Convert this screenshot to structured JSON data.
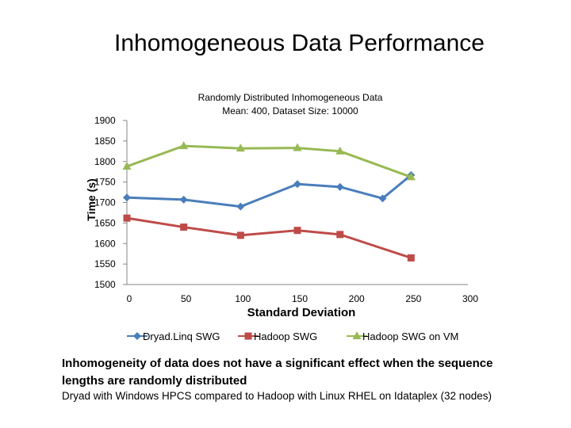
{
  "slide": {
    "title": "Inhomogeneous Data Performance",
    "note_primary": "Inhomogeneity of data does not have a significant effect when the sequence lengths are randomly distributed",
    "note_secondary": "Dryad with Windows HPCS compared to Hadoop with Linux RHEL on Idataplex (32 nodes)"
  },
  "chart_data": {
    "type": "line",
    "title": "Randomly Distributed Inhomogeneous Data",
    "subtitle": "Mean: 400,  Dataset Size: 10000",
    "xlabel": "Standard Deviation",
    "ylabel": "Time (s)",
    "xlim": [
      0,
      300
    ],
    "ylim": [
      1500,
      1900
    ],
    "xticks": [
      0,
      50,
      100,
      150,
      200,
      250,
      300
    ],
    "yticks": [
      1500,
      1550,
      1600,
      1650,
      1700,
      1750,
      1800,
      1850,
      1900
    ],
    "gridlines": false,
    "legend_position": "bottom",
    "series": [
      {
        "name": "Dryad.Linq SWG",
        "color": "#4a7ebb",
        "marker": "diamond",
        "x": [
          0,
          50,
          100,
          150,
          187.5,
          225,
          250
        ],
        "y": [
          1712,
          1707,
          1690,
          1745,
          1738,
          1710,
          1767
        ]
      },
      {
        "name": "Hadoop SWG",
        "color": "#be4b48",
        "marker": "square",
        "x": [
          0,
          50,
          100,
          150,
          187.5,
          250
        ],
        "y": [
          1662,
          1640,
          1620,
          1632,
          1622,
          1565
        ]
      },
      {
        "name": "Hadoop SWG on VM",
        "color": "#98b954",
        "marker": "triangle",
        "x": [
          0,
          50,
          100,
          150,
          187.5,
          250
        ],
        "y": [
          1788,
          1838,
          1832,
          1833,
          1825,
          1762
        ]
      }
    ]
  }
}
